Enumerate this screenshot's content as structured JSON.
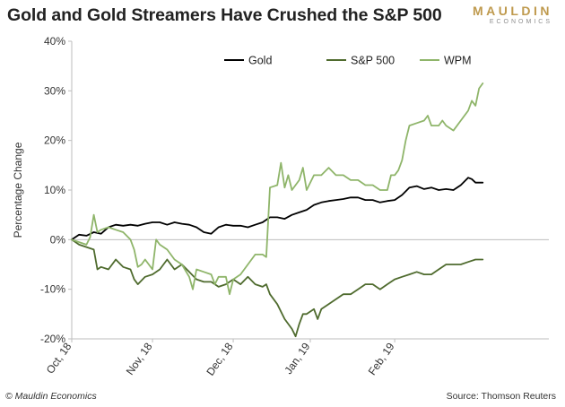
{
  "header": {
    "title": "Gold and Gold Streamers Have Crushed the S&P 500",
    "brand_main": "MAULDIN",
    "brand_sub": "ECONOMICS"
  },
  "footer": {
    "copyright": "© Mauldin Economics",
    "source": "Source: Thomson Reuters"
  },
  "colors": {
    "gold": "#000000",
    "sp500": "#4f6b2e",
    "wpm": "#8fb56a",
    "brand": "#bf9a4e"
  },
  "chart_data": {
    "type": "line",
    "title": "Gold and Gold Streamers Have Crushed the S&P 500",
    "ylabel": "Percentage Change",
    "xlabel": "",
    "ylim": [
      -20,
      40
    ],
    "xlim": [
      0,
      130
    ],
    "yticks": [
      -20,
      -10,
      0,
      10,
      20,
      30,
      40
    ],
    "ytick_labels": [
      "-20%",
      "-10%",
      "0%",
      "10%",
      "20%",
      "30%",
      "40%"
    ],
    "xticks": [
      0,
      22,
      44,
      65,
      88
    ],
    "xtick_labels": [
      "Oct, 18",
      "Nov, 18",
      "Dec, 18",
      "Jan, 19",
      "Feb, 19"
    ],
    "grid": false,
    "legend_position": "top-center",
    "series": [
      {
        "name": "Gold",
        "color": "#000000",
        "points": [
          [
            0,
            0
          ],
          [
            2,
            1
          ],
          [
            4,
            0.8
          ],
          [
            6,
            1.5
          ],
          [
            8,
            1.2
          ],
          [
            10,
            2.5
          ],
          [
            12,
            3
          ],
          [
            14,
            2.8
          ],
          [
            16,
            3
          ],
          [
            18,
            2.8
          ],
          [
            20,
            3.2
          ],
          [
            22,
            3.5
          ],
          [
            24,
            3.5
          ],
          [
            26,
            3
          ],
          [
            28,
            3.5
          ],
          [
            30,
            3.2
          ],
          [
            32,
            3
          ],
          [
            34,
            2.5
          ],
          [
            36,
            1.5
          ],
          [
            38,
            1.2
          ],
          [
            40,
            2.5
          ],
          [
            42,
            3
          ],
          [
            44,
            2.8
          ],
          [
            46,
            2.8
          ],
          [
            48,
            2.5
          ],
          [
            50,
            3
          ],
          [
            52,
            3.5
          ],
          [
            54,
            4.5
          ],
          [
            56,
            4.5
          ],
          [
            58,
            4.2
          ],
          [
            60,
            5
          ],
          [
            62,
            5.5
          ],
          [
            64,
            6
          ],
          [
            66,
            7
          ],
          [
            68,
            7.5
          ],
          [
            70,
            7.8
          ],
          [
            72,
            8
          ],
          [
            74,
            8.2
          ],
          [
            76,
            8.5
          ],
          [
            78,
            8.5
          ],
          [
            80,
            8
          ],
          [
            82,
            8
          ],
          [
            84,
            7.5
          ],
          [
            86,
            7.8
          ],
          [
            88,
            8
          ],
          [
            90,
            9
          ],
          [
            92,
            10.5
          ],
          [
            94,
            10.8
          ],
          [
            96,
            10.2
          ],
          [
            98,
            10.5
          ],
          [
            100,
            10
          ],
          [
            102,
            10.2
          ],
          [
            104,
            10
          ],
          [
            106,
            11
          ],
          [
            108,
            12.5
          ],
          [
            109,
            12.2
          ],
          [
            110,
            11.5
          ],
          [
            112,
            11.5
          ]
        ]
      },
      {
        "name": "S&P 500",
        "color": "#4f6b2e",
        "points": [
          [
            0,
            0
          ],
          [
            2,
            -1
          ],
          [
            4,
            -1.5
          ],
          [
            6,
            -2
          ],
          [
            7,
            -6
          ],
          [
            8,
            -5.5
          ],
          [
            10,
            -6
          ],
          [
            12,
            -4
          ],
          [
            14,
            -5.5
          ],
          [
            16,
            -6
          ],
          [
            17,
            -8
          ],
          [
            18,
            -9
          ],
          [
            20,
            -7.5
          ],
          [
            22,
            -7
          ],
          [
            24,
            -6
          ],
          [
            26,
            -4
          ],
          [
            28,
            -6
          ],
          [
            30,
            -5
          ],
          [
            32,
            -6.5
          ],
          [
            34,
            -8
          ],
          [
            36,
            -8.5
          ],
          [
            38,
            -8.5
          ],
          [
            40,
            -9.5
          ],
          [
            42,
            -9
          ],
          [
            44,
            -8
          ],
          [
            46,
            -9
          ],
          [
            48,
            -7.5
          ],
          [
            50,
            -9
          ],
          [
            52,
            -9.5
          ],
          [
            53,
            -9
          ],
          [
            54,
            -11
          ],
          [
            56,
            -13
          ],
          [
            58,
            -16
          ],
          [
            60,
            -18
          ],
          [
            61,
            -19.5
          ],
          [
            62,
            -17
          ],
          [
            63,
            -15
          ],
          [
            64,
            -15
          ],
          [
            66,
            -14
          ],
          [
            67,
            -16
          ],
          [
            68,
            -14
          ],
          [
            70,
            -13
          ],
          [
            72,
            -12
          ],
          [
            74,
            -11
          ],
          [
            76,
            -11
          ],
          [
            78,
            -10
          ],
          [
            80,
            -9
          ],
          [
            82,
            -9
          ],
          [
            84,
            -10
          ],
          [
            86,
            -9
          ],
          [
            88,
            -8
          ],
          [
            90,
            -7.5
          ],
          [
            92,
            -7
          ],
          [
            94,
            -6.5
          ],
          [
            96,
            -7
          ],
          [
            98,
            -7
          ],
          [
            100,
            -6
          ],
          [
            102,
            -5
          ],
          [
            104,
            -5
          ],
          [
            106,
            -5
          ],
          [
            108,
            -4.5
          ],
          [
            110,
            -4
          ],
          [
            112,
            -4
          ]
        ]
      },
      {
        "name": "WPM",
        "color": "#8fb56a",
        "points": [
          [
            0,
            0
          ],
          [
            2,
            -0.5
          ],
          [
            4,
            -1
          ],
          [
            5,
            0.5
          ],
          [
            6,
            5
          ],
          [
            7,
            1.5
          ],
          [
            8,
            2
          ],
          [
            10,
            2.5
          ],
          [
            12,
            2
          ],
          [
            14,
            1.5
          ],
          [
            16,
            0
          ],
          [
            17,
            -2
          ],
          [
            18,
            -5.5
          ],
          [
            19,
            -5
          ],
          [
            20,
            -4
          ],
          [
            22,
            -6
          ],
          [
            23,
            0
          ],
          [
            24,
            -1
          ],
          [
            26,
            -2
          ],
          [
            28,
            -4
          ],
          [
            30,
            -5
          ],
          [
            32,
            -7.5
          ],
          [
            33,
            -10
          ],
          [
            34,
            -6
          ],
          [
            36,
            -6.5
          ],
          [
            38,
            -7
          ],
          [
            39,
            -9
          ],
          [
            40,
            -7.5
          ],
          [
            42,
            -7.5
          ],
          [
            43,
            -11
          ],
          [
            44,
            -8
          ],
          [
            46,
            -7
          ],
          [
            48,
            -5
          ],
          [
            50,
            -3
          ],
          [
            52,
            -3
          ],
          [
            53,
            -3.5
          ],
          [
            54,
            10.5
          ],
          [
            56,
            11
          ],
          [
            57,
            15.5
          ],
          [
            58,
            10.5
          ],
          [
            59,
            13
          ],
          [
            60,
            10
          ],
          [
            62,
            12
          ],
          [
            63,
            14.5
          ],
          [
            64,
            10
          ],
          [
            66,
            13
          ],
          [
            68,
            13
          ],
          [
            70,
            14.5
          ],
          [
            72,
            13
          ],
          [
            74,
            13
          ],
          [
            76,
            12
          ],
          [
            78,
            12
          ],
          [
            80,
            11
          ],
          [
            82,
            11
          ],
          [
            84,
            10
          ],
          [
            86,
            10
          ],
          [
            87,
            13
          ],
          [
            88,
            13
          ],
          [
            89,
            14
          ],
          [
            90,
            16
          ],
          [
            91,
            20
          ],
          [
            92,
            23
          ],
          [
            94,
            23.5
          ],
          [
            96,
            24
          ],
          [
            97,
            25
          ],
          [
            98,
            23
          ],
          [
            100,
            23
          ],
          [
            101,
            24
          ],
          [
            102,
            23
          ],
          [
            104,
            22
          ],
          [
            105,
            23
          ],
          [
            106,
            24
          ],
          [
            108,
            26
          ],
          [
            109,
            28
          ],
          [
            110,
            27
          ],
          [
            111,
            30.5
          ],
          [
            112,
            31.5
          ]
        ]
      }
    ]
  }
}
